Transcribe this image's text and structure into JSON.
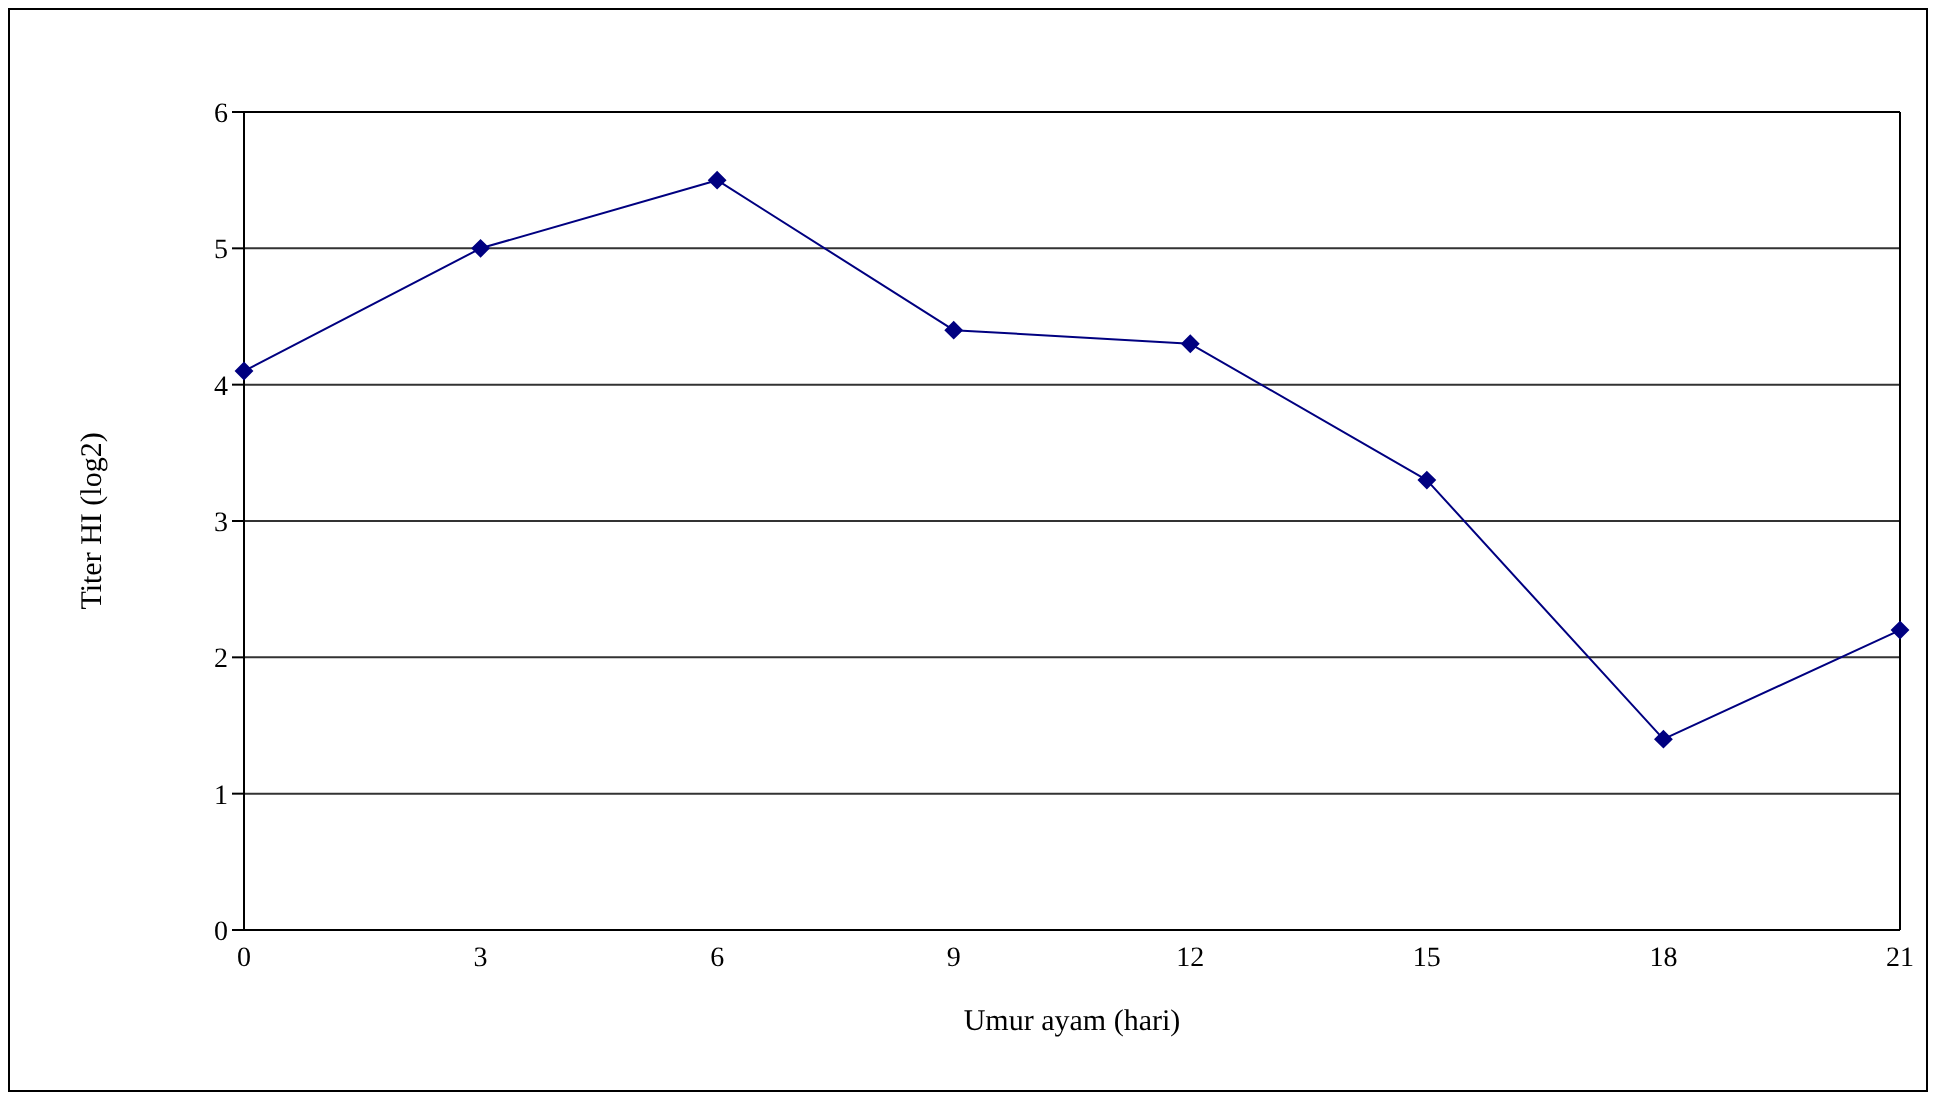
{
  "chart_data": {
    "type": "line",
    "xlabel": "Umur ayam (hari)",
    "ylabel": "Titer HI (log2)",
    "categories": [
      "0",
      "3",
      "6",
      "9",
      "12",
      "15",
      "18",
      "21"
    ],
    "series": [
      {
        "color": "#000080",
        "values": [
          4.1,
          5.0,
          5.5,
          4.4,
          4.3,
          3.3,
          1.4,
          2.2
        ]
      }
    ],
    "ylim": [
      0,
      6
    ],
    "yticks": [
      0,
      1,
      2,
      3,
      4,
      5,
      6
    ],
    "grid": "y",
    "marker": "diamond",
    "line_style": "solid"
  }
}
